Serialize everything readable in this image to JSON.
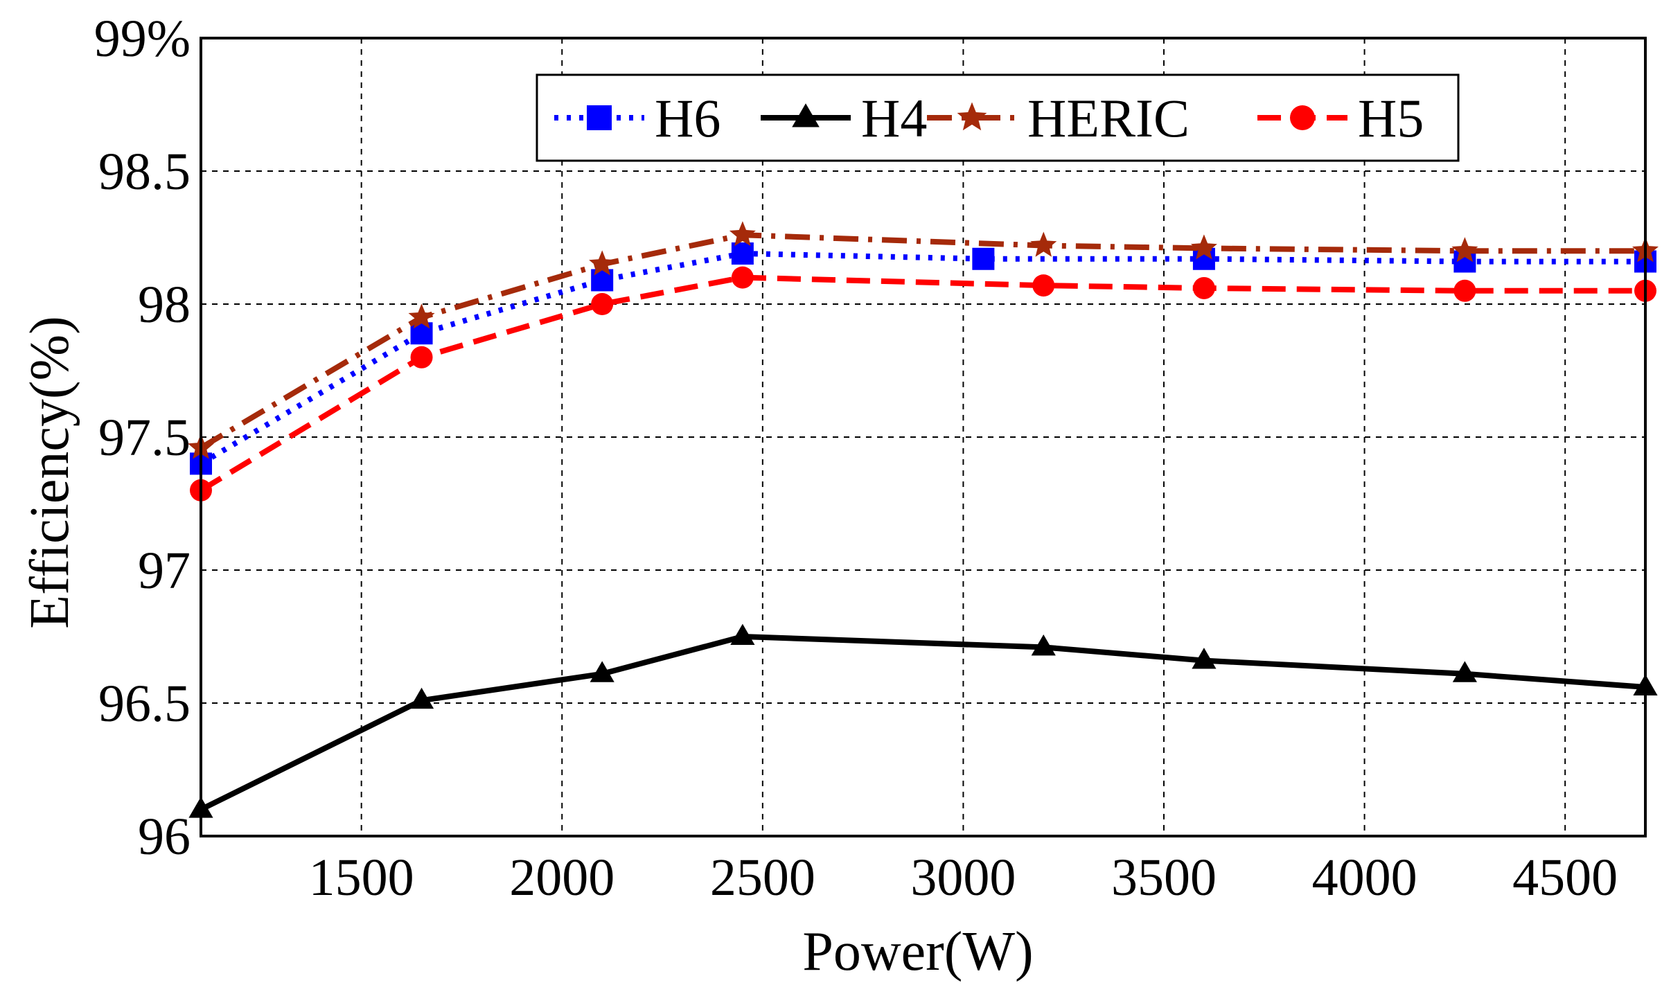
{
  "chart_data": {
    "type": "line",
    "title": "",
    "xlabel": "Power(W)",
    "ylabel": "Efficiency(%)",
    "xlim": [
      1100,
      4700
    ],
    "ylim": [
      96,
      99
    ],
    "xticks": [
      1500,
      2000,
      2500,
      3000,
      3500,
      4000,
      4500
    ],
    "xtick_labels": [
      "1500",
      "2000",
      "2500",
      "3000",
      "3500",
      "4000",
      "4500"
    ],
    "yticks": [
      96,
      96.5,
      97,
      97.5,
      98,
      98.5,
      99
    ],
    "ytick_labels": [
      "96",
      "96.5",
      "97",
      "97.5",
      "98",
      "98.5",
      "99%"
    ],
    "grid": true,
    "legend_position": "top",
    "series": [
      {
        "name": "H6",
        "color": "#0000ff",
        "line_style": "dotted",
        "marker": "square",
        "x": [
          1100,
          1650,
          2100,
          2450,
          3050,
          3600,
          4250,
          4700
        ],
        "y": [
          97.4,
          97.89,
          98.09,
          98.19,
          98.17,
          98.17,
          98.16,
          98.16
        ]
      },
      {
        "name": "H4",
        "color": "#000000",
        "line_style": "solid",
        "marker": "triangle",
        "x": [
          1100,
          1650,
          2100,
          2450,
          3200,
          3600,
          4250,
          4700
        ],
        "y": [
          96.1,
          96.51,
          96.61,
          96.75,
          96.71,
          96.66,
          96.61,
          96.56
        ]
      },
      {
        "name": "HERIC",
        "color": "#a52a0a",
        "line_style": "dashdot",
        "marker": "star",
        "x": [
          1100,
          1650,
          2100,
          2450,
          3200,
          3600,
          4250,
          4700
        ],
        "y": [
          97.46,
          97.95,
          98.15,
          98.26,
          98.22,
          98.21,
          98.2,
          98.2
        ]
      },
      {
        "name": "H5",
        "color": "#ff0000",
        "line_style": "dashed",
        "marker": "circle",
        "x": [
          1100,
          1650,
          2100,
          2450,
          3200,
          3600,
          4250,
          4700
        ],
        "y": [
          97.3,
          97.8,
          98.0,
          98.1,
          98.07,
          98.06,
          98.05,
          98.05
        ]
      }
    ]
  }
}
